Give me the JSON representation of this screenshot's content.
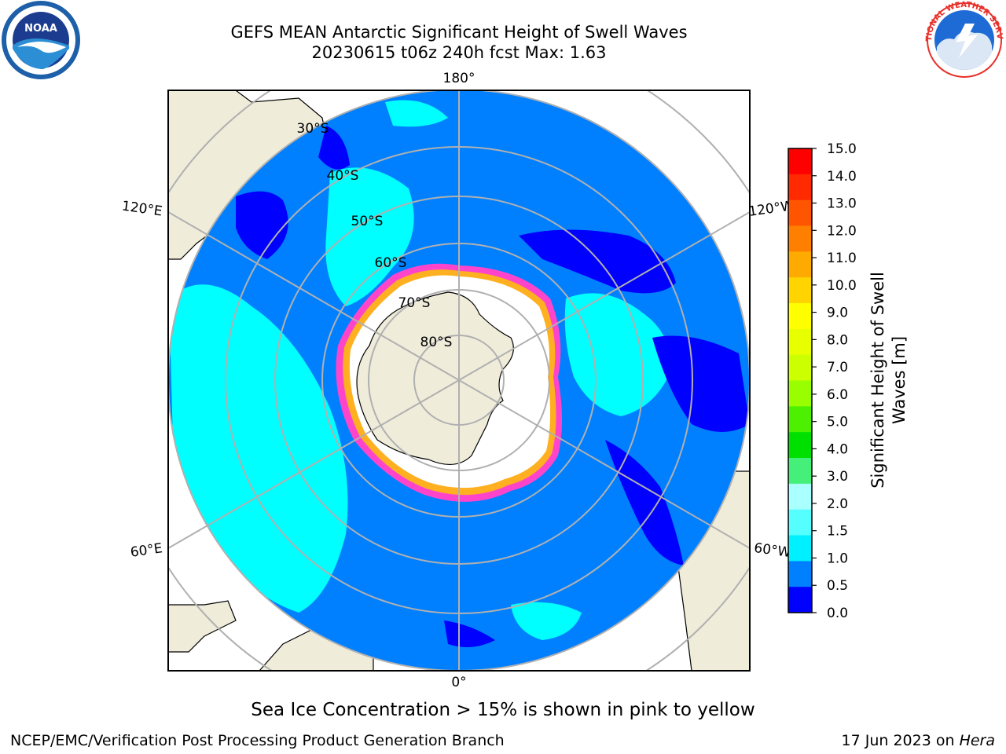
{
  "title": {
    "line1": "GEFS MEAN Antarctic Significant Height of Swell Waves",
    "line2": "20230615 t06z 240h fcst   Max: 1.63"
  },
  "map": {
    "projection": "south polar stereographic",
    "meridian_labels": {
      "top": "180°",
      "bottom": "0°",
      "left_upper": "120°E",
      "left_lower": "60°E",
      "right_upper": "120°W",
      "right_lower": "60°W"
    },
    "parallel_labels": [
      "30°S",
      "40°S",
      "50°S",
      "60°S",
      "70°S",
      "80°S"
    ],
    "colors": {
      "ocean_base": "#0080ff",
      "swell_low": "#0000ff",
      "swell_mid": "#00ffff",
      "land": "#efecda",
      "ice_pink": "#ff44cc",
      "ice_yellow": "#ffb020",
      "grid": "#b0b0b0"
    }
  },
  "colorbar": {
    "ticks": [
      "15.0",
      "14.0",
      "13.0",
      "12.0",
      "11.0",
      "10.0",
      "9.0",
      "8.0",
      "7.0",
      "6.0",
      "5.0",
      "4.0",
      "3.0",
      "2.0",
      "1.5",
      "1.0",
      "0.5",
      "0.0"
    ],
    "bands_top_to_bottom": [
      "#ff0000",
      "#ff2a00",
      "#ff5500",
      "#ff7f00",
      "#ffaa00",
      "#ffd400",
      "#ffff00",
      "#e8ff00",
      "#ccff00",
      "#99ff00",
      "#4cf000",
      "#00e000",
      "#44f07a",
      "#aaffff",
      "#55ffff",
      "#00f0ff",
      "#0080ff",
      "#0000ff"
    ],
    "label_line1": "Significant Height of Swell",
    "label_line2": "Waves [m]"
  },
  "footnote": "Sea Ice Concentration > 15% is shown in pink to yellow",
  "footer": {
    "left": "NCEP/EMC/Verification Post Processing Product Generation Branch",
    "right_date": "17 Jun 2023 on ",
    "right_host": "Hera"
  },
  "logos": {
    "noaa_text": "NOAA",
    "nws_text": "NATIONAL WEATHER SERVICE"
  }
}
